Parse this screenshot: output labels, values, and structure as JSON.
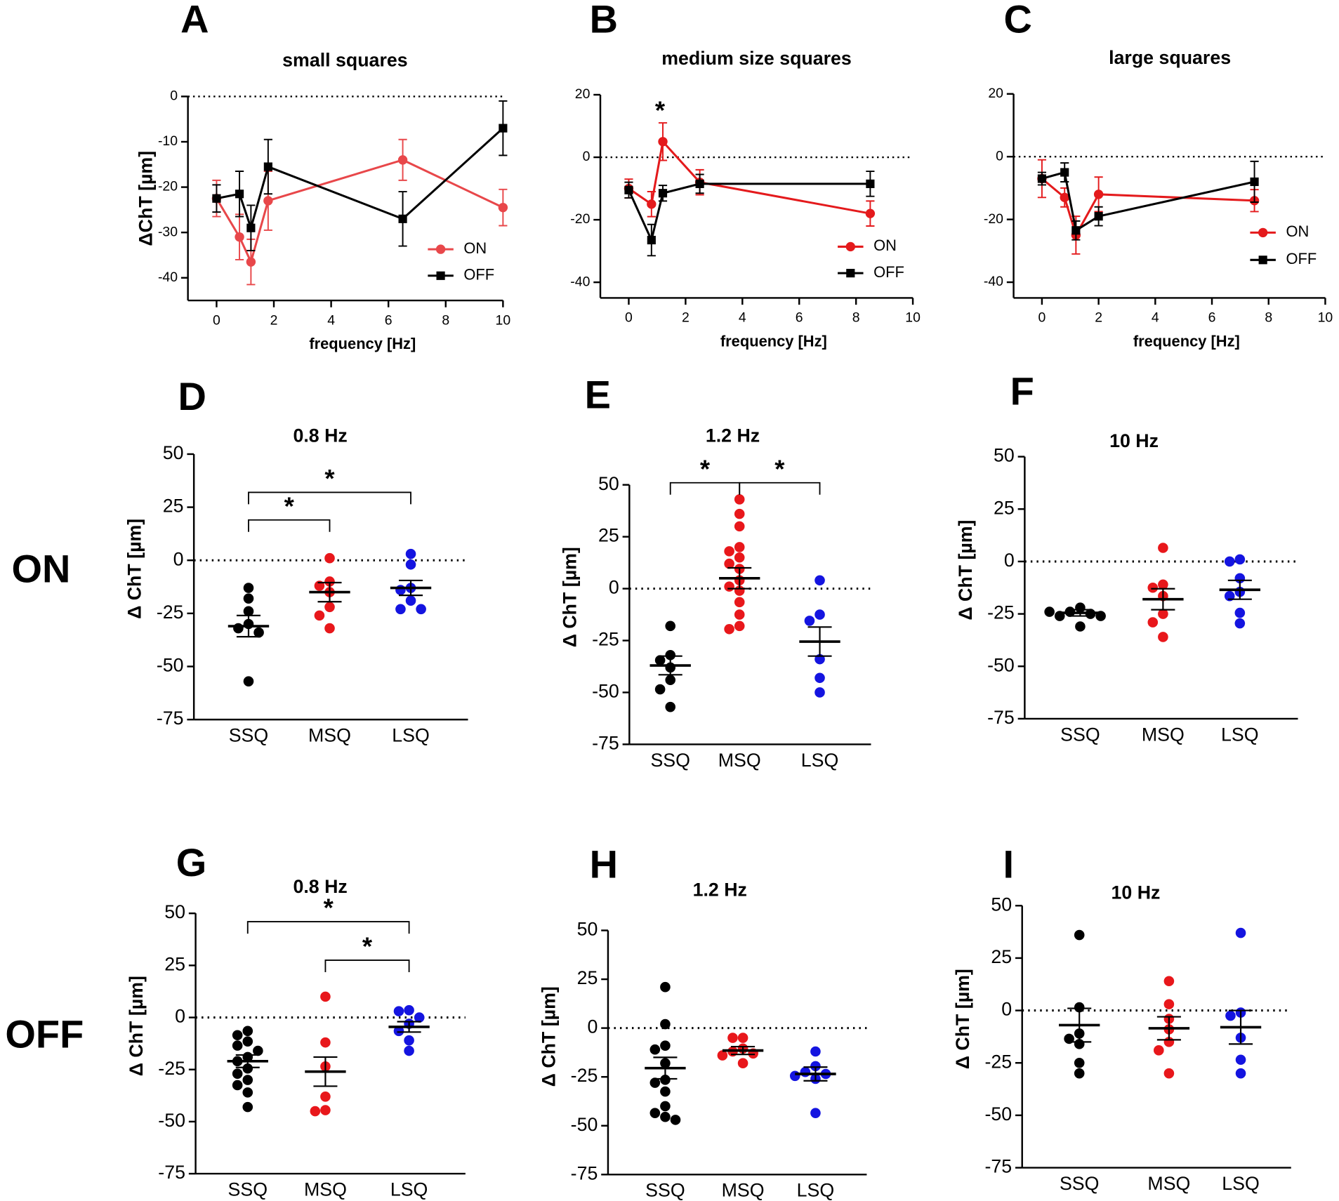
{
  "row_labels": [
    "ON",
    "OFF"
  ],
  "chart_data": [
    {
      "type": "line",
      "panel": "A",
      "title": "small squares",
      "xlabel": "frequency [Hz]",
      "ylabel": "ΔChT [µm]",
      "xlim": [
        -1,
        10
      ],
      "ylim": [
        -45,
        0
      ],
      "xticks": [
        0,
        2,
        4,
        6,
        8,
        10
      ],
      "yticks": [
        0,
        -10,
        -20,
        -30,
        -40
      ],
      "hline": 0,
      "legend": "lower right",
      "series": [
        {
          "name": "ON",
          "color": "#e8474a",
          "marker": "circle",
          "x": [
            0,
            0.8,
            1.2,
            1.8,
            6.5,
            10
          ],
          "values": [
            -22.5,
            -31,
            -36.5,
            -23,
            -14,
            -24.5
          ],
          "errors": [
            4,
            5,
            5,
            6.5,
            4.5,
            4
          ]
        },
        {
          "name": "OFF",
          "color": "#000000",
          "marker": "square",
          "x": [
            0,
            0.8,
            1.2,
            1.8,
            6.5,
            10
          ],
          "values": [
            -22.5,
            -21.5,
            -29,
            -15.5,
            -27,
            -7
          ],
          "errors": [
            3,
            5,
            5,
            6,
            6,
            6
          ]
        }
      ]
    },
    {
      "type": "line",
      "panel": "B",
      "title": "medium size squares",
      "xlabel": "frequency [Hz]",
      "xlim": [
        -1,
        10
      ],
      "ylim": [
        -45,
        20
      ],
      "xticks": [
        0,
        2,
        4,
        6,
        8,
        10
      ],
      "yticks": [
        20,
        0,
        -20,
        -40
      ],
      "hline": 0,
      "legend": "lower right",
      "annotations": [
        {
          "text": "*",
          "x": 1.1,
          "y": 16
        }
      ],
      "series": [
        {
          "name": "ON",
          "color": "#e41a1c",
          "marker": "circle",
          "x": [
            0,
            0.8,
            1.2,
            2.5,
            8.5
          ],
          "values": [
            -10,
            -15,
            5,
            -8,
            -18
          ],
          "errors": [
            3,
            4,
            6,
            4,
            4
          ]
        },
        {
          "name": "OFF",
          "color": "#000000",
          "marker": "square",
          "x": [
            0,
            0.8,
            1.2,
            2.5,
            8.5
          ],
          "values": [
            -10.5,
            -26.5,
            -11.5,
            -8.5,
            -8.5
          ],
          "errors": [
            2.5,
            5,
            2.5,
            3,
            4
          ]
        }
      ]
    },
    {
      "type": "line",
      "panel": "C",
      "title": "large squares",
      "xlabel": "frequency [Hz]",
      "xlim": [
        -1,
        10
      ],
      "ylim": [
        -45,
        20
      ],
      "xticks": [
        0,
        2,
        4,
        6,
        8,
        10
      ],
      "yticks": [
        20,
        0,
        -20,
        -40
      ],
      "hline": 0,
      "legend": "right",
      "series": [
        {
          "name": "ON",
          "color": "#e41a1c",
          "marker": "circle",
          "x": [
            0,
            0.8,
            1.2,
            2,
            7.5
          ],
          "values": [
            -7,
            -13,
            -25,
            -12,
            -14
          ],
          "errors": [
            6,
            3,
            6,
            5.5,
            3.5
          ]
        },
        {
          "name": "OFF",
          "color": "#000000",
          "marker": "square",
          "x": [
            0,
            0.8,
            1.2,
            2,
            7.5
          ],
          "values": [
            -7,
            -5,
            -23.5,
            -19,
            -8
          ],
          "errors": [
            2,
            3,
            3,
            3,
            6.5
          ]
        }
      ]
    },
    {
      "type": "strip",
      "panel": "D",
      "title": "0.8 Hz",
      "ylabel": "Δ ChT [µm]",
      "ylim": [
        -75,
        50
      ],
      "yticks": [
        50,
        25,
        0,
        -25,
        -50,
        -75
      ],
      "hline": 0,
      "categories": [
        "SSQ",
        "MSQ",
        "LSQ"
      ],
      "colors": [
        "#000000",
        "#e8171b",
        "#1414e0"
      ],
      "points": [
        [
          -13,
          -18,
          -24,
          -30,
          -32,
          -34,
          -57
        ],
        [
          1,
          -10,
          -12,
          -15,
          -22,
          -26,
          -32
        ],
        [
          3,
          -2,
          -13,
          -14,
          -19,
          -23,
          -23
        ]
      ],
      "means": [
        -31,
        -15,
        -13
      ],
      "sems": [
        5,
        4.5,
        3.5
      ],
      "brackets": [
        {
          "from": 0,
          "to": 1,
          "y": 19,
          "label": "*"
        },
        {
          "from": 0,
          "to": 2,
          "y": 32,
          "label": "*"
        }
      ]
    },
    {
      "type": "strip",
      "panel": "E",
      "title": "1.2 Hz",
      "ylabel": "Δ ChT [µm]",
      "ylim": [
        -75,
        50
      ],
      "yticks": [
        50,
        25,
        0,
        -25,
        -50,
        -75
      ],
      "hline": 0,
      "categories": [
        "SSQ",
        "MSQ",
        "LSQ"
      ],
      "colors": [
        "#000000",
        "#e8171b",
        "#1414e0"
      ],
      "points": [
        [
          -18,
          -32,
          -34.5,
          -38,
          -44,
          -48.5,
          -57
        ],
        [
          43,
          36,
          30,
          20,
          18,
          15,
          12,
          9.5,
          4,
          1,
          -1,
          -6.5,
          -12.5,
          -18,
          -19.5
        ],
        [
          4,
          -12.5,
          -15.5,
          -34,
          -43,
          -50
        ]
      ],
      "means": [
        -37,
        5,
        -25.5
      ],
      "sems": [
        4.5,
        5,
        7
      ],
      "brackets": [
        {
          "from": 0,
          "to": 1,
          "y": 51,
          "label": "*"
        },
        {
          "from": 1,
          "to": 2,
          "y": 51,
          "label": "*"
        }
      ]
    },
    {
      "type": "strip",
      "panel": "F",
      "title": "10 Hz",
      "ylabel": "Δ ChT [µm]",
      "ylim": [
        -75,
        50
      ],
      "yticks": [
        50,
        25,
        0,
        -25,
        -50,
        -75
      ],
      "hline": 0,
      "categories": [
        "SSQ",
        "MSQ",
        "LSQ"
      ],
      "colors": [
        "#000000",
        "#e8171b",
        "#1414e0"
      ],
      "points": [
        [
          -22,
          -24,
          -25,
          -26,
          -26,
          -31,
          -24
        ],
        [
          6.5,
          -11,
          -12.5,
          -16.5,
          -25,
          -29,
          -36
        ],
        [
          1,
          0,
          -8,
          -14.5,
          -16.5,
          -24.5,
          -29.5
        ]
      ],
      "means": [
        -24.5,
        -18,
        -13.5
      ],
      "sems": [
        1.5,
        5,
        4.5
      ]
    },
    {
      "type": "strip",
      "panel": "G",
      "title": "0.8 Hz",
      "ylabel": "Δ ChT [µm]",
      "ylim": [
        -75,
        50
      ],
      "yticks": [
        50,
        25,
        0,
        -25,
        -50,
        -75
      ],
      "hline": 0,
      "categories": [
        "SSQ",
        "MSQ",
        "LSQ"
      ],
      "colors": [
        "#000000",
        "#e8171b",
        "#1414e0"
      ],
      "points": [
        [
          -6.5,
          -8.5,
          -11.5,
          -13.5,
          -16,
          -19,
          -21,
          -24.5,
          -27,
          -30,
          -32.5,
          -36,
          -43
        ],
        [
          10,
          -12,
          -23.5,
          -38,
          -44.5,
          -45
        ],
        [
          3.5,
          3,
          0,
          -3,
          -6.5,
          -11,
          -16
        ]
      ],
      "means": [
        -21,
        -26,
        -4.5
      ],
      "sems": [
        3,
        7,
        2.5
      ],
      "brackets": [
        {
          "from": 0,
          "to": 2,
          "y": 46,
          "label": "*"
        },
        {
          "from": 1,
          "to": 2,
          "y": 27.5,
          "label": "*"
        }
      ]
    },
    {
      "type": "strip",
      "panel": "H",
      "title": "1.2 Hz",
      "ylabel": "Δ ChT [µm]",
      "ylim": [
        -75,
        50
      ],
      "yticks": [
        50,
        25,
        0,
        -25,
        -50,
        -75
      ],
      "hline": 0,
      "categories": [
        "SSQ",
        "MSQ",
        "LSQ"
      ],
      "colors": [
        "#000000",
        "#e8171b",
        "#1414e0"
      ],
      "points": [
        [
          21,
          2,
          -9,
          -11,
          -18,
          -26.5,
          -28,
          -32.5,
          -40,
          -43.5,
          -45.5,
          -47
        ],
        [
          -5,
          -5,
          -10.5,
          -12,
          -13,
          -14,
          -18
        ],
        [
          -12,
          -19.5,
          -22.5,
          -23.5,
          -24.5,
          -26,
          -43.5
        ]
      ],
      "means": [
        -20.5,
        -11.5,
        -23.5
      ],
      "sems": [
        5.5,
        2,
        3.5
      ]
    },
    {
      "type": "strip",
      "panel": "I",
      "title": "10 Hz",
      "ylabel": "Δ ChT [µm]",
      "ylim": [
        -75,
        50
      ],
      "yticks": [
        50,
        25,
        0,
        -25,
        -50,
        -75
      ],
      "hline": 0,
      "categories": [
        "SSQ",
        "MSQ",
        "LSQ"
      ],
      "colors": [
        "#000000",
        "#e8171b",
        "#1414e0"
      ],
      "points": [
        [
          36,
          1.5,
          -11,
          -13.5,
          -16,
          -25,
          -30
        ],
        [
          14,
          3,
          -4,
          -9,
          -15,
          -19,
          -30
        ],
        [
          37,
          -1,
          -2.5,
          -13,
          -23.5,
          -30
        ]
      ],
      "means": [
        -7,
        -8.5,
        -8
      ],
      "sems": [
        8,
        5.5,
        8
      ]
    }
  ]
}
